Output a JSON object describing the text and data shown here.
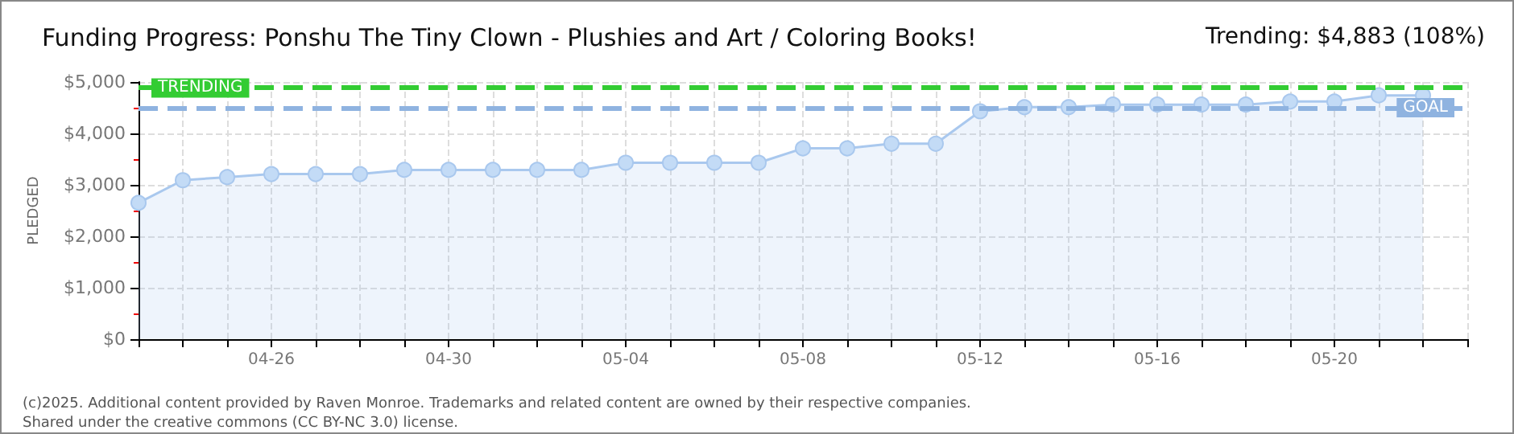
{
  "chart_data": {
    "type": "area",
    "title": "Funding Progress: Ponshu The Tiny Clown - Plushies and Art / Coloring Books!",
    "subtitle": "Trending: $4,883 (108%)",
    "ylabel": "PLEDGED",
    "annotations": [
      "(c)2025. Additional content provided by Raven Monroe. Trademarks and related content are owned by their respective companies.",
      "Shared under the creative commons (CC BY-NC 3.0) license."
    ],
    "x": [
      "--04-23",
      "--04-24",
      "--04-25",
      "--04-26",
      "--04-27",
      "--04-28",
      "--04-29",
      "--04-30",
      "--05-01",
      "--05-02",
      "--05-03",
      "--05-04",
      "--05-05",
      "--05-06",
      "--05-07",
      "--05-08",
      "--05-09",
      "--05-10",
      "--05-11",
      "--05-12",
      "--05-13",
      "--05-14",
      "--05-15",
      "--05-16",
      "--05-17",
      "--05-18",
      "--05-19",
      "--05-20",
      "--05-21",
      "--05-22"
    ],
    "series": [
      {
        "color": "#a9c8ee",
        "values": [
          2650,
          3090,
          3150,
          3210,
          3210,
          3210,
          3290,
          3290,
          3290,
          3290,
          3290,
          3430,
          3430,
          3430,
          3430,
          3710,
          3710,
          3800,
          3800,
          4430,
          4510,
          4510,
          4560,
          4560,
          4560,
          4560,
          4620,
          4620,
          4740,
          4740
        ]
      }
    ],
    "xlim": [
      "--04-23",
      "--05-23"
    ],
    "xticks": [
      {
        "value": "--04-23",
        "label": null
      },
      {
        "value": "--04-24",
        "label": null
      },
      {
        "value": "--04-25",
        "label": null
      },
      {
        "value": "--04-26",
        "label": "04-26"
      },
      {
        "value": "--04-27",
        "label": null
      },
      {
        "value": "--04-28",
        "label": null
      },
      {
        "value": "--04-29",
        "label": null
      },
      {
        "value": "--04-30",
        "label": "04-30"
      },
      {
        "value": "--05-01",
        "label": null
      },
      {
        "value": "--05-02",
        "label": null
      },
      {
        "value": "--05-03",
        "label": null
      },
      {
        "value": "--05-04",
        "label": "05-04"
      },
      {
        "value": "--05-05",
        "label": null
      },
      {
        "value": "--05-06",
        "label": null
      },
      {
        "value": "--05-07",
        "label": null
      },
      {
        "value": "--05-08",
        "label": "05-08"
      },
      {
        "value": "--05-09",
        "label": null
      },
      {
        "value": "--05-10",
        "label": null
      },
      {
        "value": "--05-11",
        "label": null
      },
      {
        "value": "--05-12",
        "label": "05-12"
      },
      {
        "value": "--05-13",
        "label": null
      },
      {
        "value": "--05-14",
        "label": null
      },
      {
        "value": "--05-15",
        "label": null
      },
      {
        "value": "--05-16",
        "label": "05-16"
      },
      {
        "value": "--05-17",
        "label": null
      },
      {
        "value": "--05-18",
        "label": null
      },
      {
        "value": "--05-19",
        "label": null
      },
      {
        "value": "--05-20",
        "label": "05-20"
      },
      {
        "value": "--05-21",
        "label": null
      },
      {
        "value": "--05-22",
        "label": null
      },
      {
        "value": "--05-23",
        "label": null
      }
    ],
    "ylim": [
      0,
      5000
    ],
    "yticks": [
      {
        "value": 0,
        "label": "$0"
      },
      {
        "value": 1000,
        "label": "$1,000"
      },
      {
        "value": 2000,
        "label": "$2,000"
      },
      {
        "value": 3000,
        "label": "$3,000"
      },
      {
        "value": 4000,
        "label": "$4,000"
      },
      {
        "value": 5000,
        "label": "$5,000"
      }
    ],
    "ref_lines": [
      {
        "axis": "y",
        "value": 4883,
        "label": "TRENDING",
        "color": "#33cc33",
        "line_style": "dashed"
      },
      {
        "axis": "y",
        "value": 4500,
        "label": "GOAL",
        "color": "#8fb3e0",
        "line_style": "dashed"
      }
    ],
    "grid": true,
    "marker": "circle"
  }
}
